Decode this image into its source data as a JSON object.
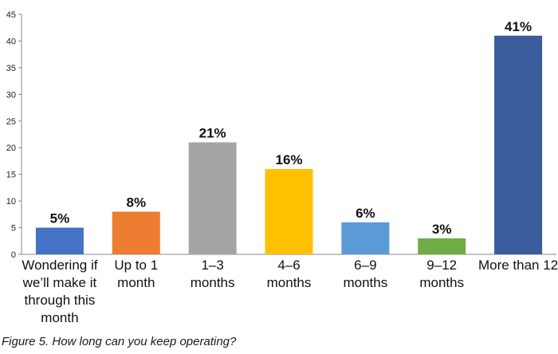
{
  "caption": "Figure 5. How long can you keep operating?",
  "chart_data": {
    "type": "bar",
    "categories": [
      [
        "Wondering if",
        "we’ll make it",
        "through this",
        "month"
      ],
      [
        "Up to 1",
        "month"
      ],
      [
        "1–3",
        "months"
      ],
      [
        "4–6",
        "months"
      ],
      [
        "6–9",
        "months"
      ],
      [
        "9–12",
        "months"
      ],
      [
        "More than 12"
      ]
    ],
    "values": [
      5,
      8,
      21,
      16,
      6,
      3,
      41
    ],
    "data_labels": [
      "5%",
      "8%",
      "21%",
      "16%",
      "6%",
      "3%",
      "41%"
    ],
    "colors": [
      "#4472C4",
      "#ED7D31",
      "#A5A5A5",
      "#FFC000",
      "#5B9BD5",
      "#70AD47",
      "#3A5C9C"
    ],
    "ylim": [
      0,
      45
    ],
    "yticks": [
      0,
      5,
      10,
      15,
      20,
      25,
      30,
      35,
      40,
      45
    ],
    "grid": false,
    "legend": "none"
  }
}
